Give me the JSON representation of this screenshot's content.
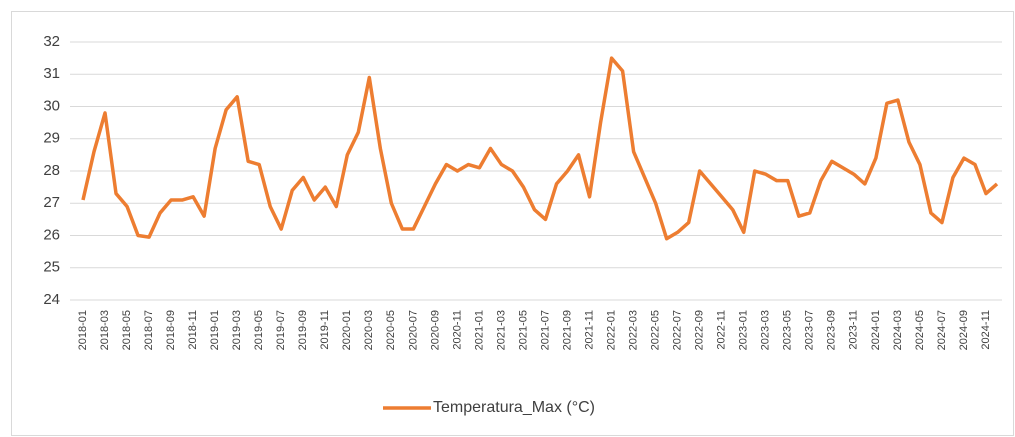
{
  "chart_data": {
    "type": "line",
    "categories": [
      "2018-01",
      null,
      "2018-03",
      null,
      "2018-05",
      null,
      "2018-07",
      null,
      "2018-09",
      null,
      "2018-11",
      null,
      "2019-01",
      null,
      "2019-03",
      null,
      "2019-05",
      null,
      "2019-07",
      null,
      "2019-09",
      null,
      "2019-11",
      null,
      "2020-01",
      null,
      "2020-03",
      null,
      "2020-05",
      null,
      "2020-07",
      null,
      "2020-09",
      null,
      "2020-11",
      null,
      "2021-01",
      null,
      "2021-03",
      null,
      "2021-05",
      null,
      "2021-07",
      null,
      "2021-09",
      null,
      "2021-11",
      null,
      "2022-01",
      null,
      "2022-03",
      null,
      "2022-05",
      null,
      "2022-07",
      null,
      "2022-09",
      null,
      "2022-11",
      null,
      "2023-01",
      null,
      "2023-03",
      null,
      "2023-05",
      null,
      "2023-07",
      null,
      "2023-09",
      null,
      "2023-11",
      null,
      "2024-01",
      null,
      "2024-03",
      null,
      "2024-05",
      null,
      "2024-07",
      null,
      "2024-09",
      null,
      "2024-11",
      null
    ],
    "series": [
      {
        "name": "Temperatura_Max (°C)",
        "color": "#ED7D31",
        "values": [
          27.1,
          28.6,
          29.8,
          27.3,
          26.9,
          26.0,
          25.95,
          26.7,
          27.1,
          27.1,
          27.2,
          26.6,
          28.7,
          29.9,
          30.3,
          28.3,
          28.2,
          26.9,
          26.2,
          27.4,
          27.8,
          27.1,
          27.5,
          26.9,
          28.5,
          29.2,
          30.9,
          28.7,
          27.0,
          26.2,
          26.2,
          26.9,
          27.6,
          28.2,
          28.0,
          28.2,
          28.1,
          28.7,
          28.2,
          28.0,
          27.5,
          26.8,
          26.5,
          27.6,
          28.0,
          28.5,
          27.2,
          29.5,
          31.5,
          31.1,
          28.6,
          27.8,
          27.0,
          25.9,
          26.1,
          26.4,
          28.0,
          27.6,
          27.2,
          26.8,
          26.1,
          28.0,
          27.9,
          27.7,
          27.7,
          26.6,
          26.7,
          27.7,
          28.3,
          28.1,
          27.9,
          27.6,
          28.4,
          30.1,
          30.2,
          28.9,
          28.2,
          26.7,
          26.4,
          27.8,
          28.4,
          28.2,
          27.3,
          27.6
        ]
      }
    ],
    "ylim": [
      24,
      32
    ],
    "yticks": [
      24,
      25,
      26,
      27,
      28,
      29,
      30,
      31,
      32
    ],
    "grid": true,
    "legend": "bottom"
  }
}
